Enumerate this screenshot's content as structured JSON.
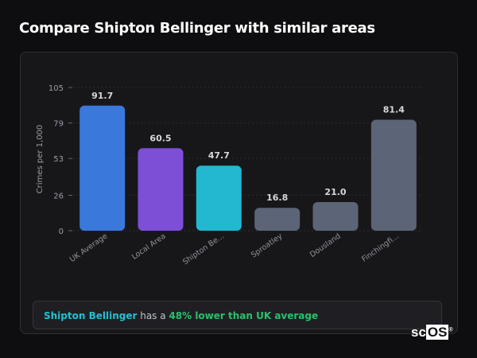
{
  "title": "Compare Shipton Bellinger with similar areas",
  "chart_data": {
    "type": "bar",
    "categories": [
      "UK Average",
      "Local Area",
      "Shipton Be...",
      "Sproatley",
      "Dousland",
      "Finchingfi..."
    ],
    "values": [
      91.7,
      60.5,
      47.7,
      16.8,
      21.0,
      81.4
    ],
    "value_labels": [
      "91.7",
      "60.5",
      "47.7",
      "16.8",
      "21.0",
      "81.4"
    ],
    "colors": [
      "#3a78dc",
      "#7d4fd6",
      "#22b8cf",
      "#5c6577",
      "#5c6577",
      "#5c6577"
    ],
    "ylabel": "Crimes per 1,000",
    "yticks": [
      0,
      26,
      53,
      79,
      105
    ],
    "ylim": [
      0,
      105
    ],
    "grid": true
  },
  "note": {
    "area": "Shipton Bellinger",
    "middle": " has a ",
    "highlight": "48% lower than UK average"
  },
  "logo": {
    "text": "scOS",
    "mark": "®"
  }
}
